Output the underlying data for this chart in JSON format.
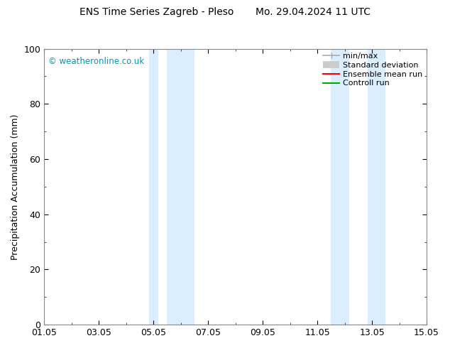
{
  "title": "ENS Time Series Zagreb - Pleso       Mo. 29.04.2024 11 UTC",
  "ylabel": "Precipitation Accumulation (mm)",
  "watermark": "© weatheronline.co.uk",
  "watermark_color": "#0099bb",
  "ylim": [
    0,
    100
  ],
  "yticks": [
    0,
    20,
    40,
    60,
    80,
    100
  ],
  "xtick_labels": [
    "01.05",
    "03.05",
    "05.05",
    "07.05",
    "09.05",
    "11.05",
    "13.05",
    "15.05"
  ],
  "xtick_positions": [
    0,
    2,
    4,
    6,
    8,
    10,
    12,
    14
  ],
  "x_total_days": 14,
  "shaded_bands": [
    {
      "xmin": 3.83,
      "xmax": 4.17,
      "color": "#daeeff"
    },
    {
      "xmin": 4.5,
      "xmax": 5.5,
      "color": "#daeeff"
    },
    {
      "xmin": 10.5,
      "xmax": 11.17,
      "color": "#daeeff"
    },
    {
      "xmin": 11.83,
      "xmax": 12.5,
      "color": "#daeeff"
    }
  ],
  "legend_entries": [
    {
      "label": "min/max",
      "color": "#aaaaaa",
      "lw": 1.2,
      "style": "minmax"
    },
    {
      "label": "Standard deviation",
      "color": "#cccccc",
      "lw": 7,
      "style": "thick"
    },
    {
      "label": "Ensemble mean run",
      "color": "#ff0000",
      "lw": 1.5,
      "style": "line"
    },
    {
      "label": "Controll run",
      "color": "#00aa00",
      "lw": 1.5,
      "style": "line"
    }
  ],
  "bg_color": "#ffffff",
  "title_fontsize": 10,
  "axis_label_fontsize": 9,
  "tick_label_fontsize": 9,
  "legend_fontsize": 8
}
